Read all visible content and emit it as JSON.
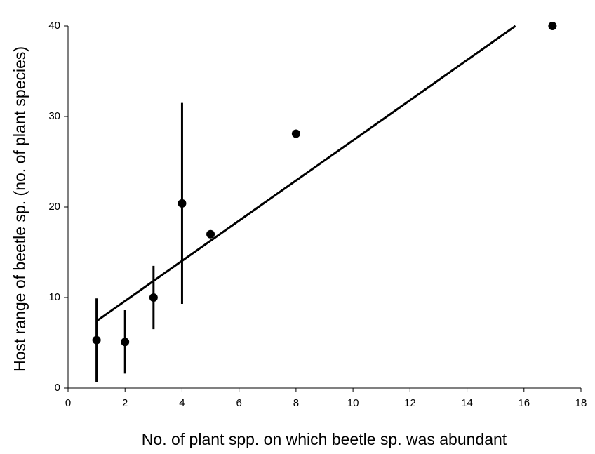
{
  "chart_data": {
    "type": "scatter",
    "x_label": "No. of plant spp. on which beetle sp. was abundant",
    "y_label": "Host range of beetle sp. (no. of plant species)",
    "x": [
      1,
      2,
      3,
      4,
      5,
      8,
      17
    ],
    "values": [
      5.3,
      5.1,
      10,
      20.4,
      17,
      28.1,
      40
    ],
    "errors": [
      4.6,
      3.5,
      3.5,
      11.1,
      null,
      null,
      null
    ],
    "color": "#000000",
    "fit": {
      "x": [
        1,
        15.7
      ],
      "y": [
        7.4,
        40
      ]
    },
    "xlim": [
      0,
      18
    ],
    "ylim": [
      0,
      40
    ],
    "xticks": [
      0,
      2,
      4,
      6,
      8,
      10,
      12,
      14,
      16,
      18
    ],
    "yticks": [
      0,
      10,
      20,
      30,
      40
    ],
    "grid": false
  }
}
